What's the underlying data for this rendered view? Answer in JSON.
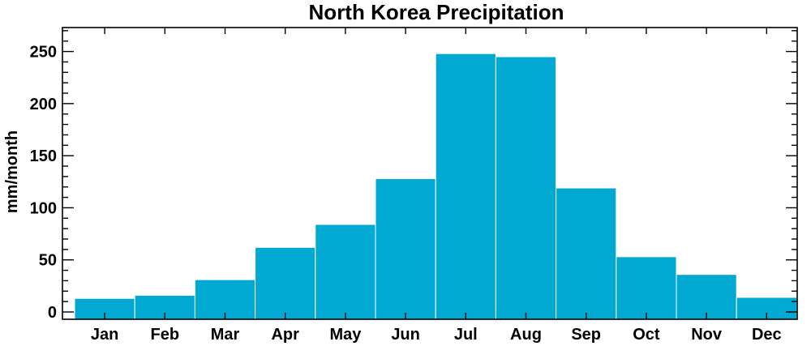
{
  "chart_data": {
    "type": "bar",
    "title": "North Korea Precipitation",
    "xlabel": "",
    "ylabel": "mm/month",
    "categories": [
      "Jan",
      "Feb",
      "Mar",
      "Apr",
      "May",
      "Jun",
      "Jul",
      "Aug",
      "Sep",
      "Oct",
      "Nov",
      "Dec"
    ],
    "values": [
      13,
      16,
      31,
      62,
      84,
      128,
      248,
      245,
      119,
      53,
      36,
      14
    ],
    "ylim": [
      -7,
      273
    ],
    "yticks": [
      0,
      50,
      100,
      150,
      200,
      250
    ],
    "grid": false,
    "bar_color": "#00a8d2"
  }
}
